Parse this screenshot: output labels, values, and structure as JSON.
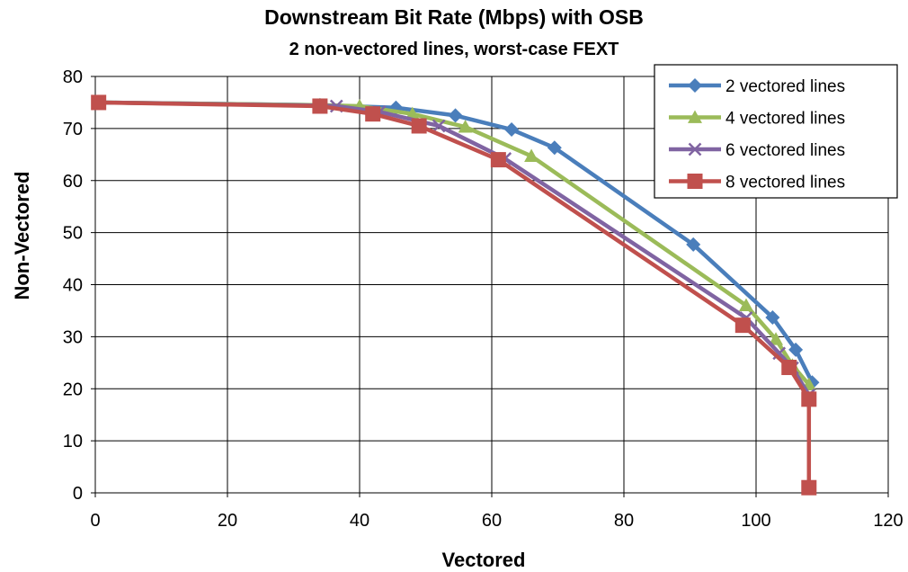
{
  "chart_data": {
    "type": "line",
    "title": "Downstream Bit Rate (Mbps) with OSB",
    "subtitle": "2 non-vectored lines, worst-case FEXT",
    "xlabel": "Vectored",
    "ylabel": "Non-Vectored",
    "xlim": [
      0,
      120
    ],
    "ylim": [
      0,
      80
    ],
    "xticks": [
      0,
      20,
      40,
      60,
      80,
      100,
      120
    ],
    "yticks": [
      0,
      10,
      20,
      30,
      40,
      50,
      60,
      70,
      80
    ],
    "grid": true,
    "legend_position": "top-right",
    "series": [
      {
        "name": "2 vectored lines",
        "color": "#4A7EBB",
        "marker": "diamond",
        "x": [
          0.5,
          34,
          45.5,
          54.5,
          63,
          69.5,
          90.5,
          102.5,
          106,
          108.5
        ],
        "y": [
          75,
          74.5,
          74,
          72.5,
          69.8,
          66.3,
          47.7,
          33.7,
          27.5,
          21.2
        ]
      },
      {
        "name": "4 vectored lines",
        "color": "#9BBB59",
        "marker": "triangle",
        "x": [
          0.5,
          34,
          40,
          48,
          56,
          66,
          98.5,
          103,
          105.5,
          108
        ],
        "y": [
          75,
          74.5,
          74.3,
          72.8,
          70.3,
          64.7,
          36,
          29.5,
          24.5,
          20.8
        ]
      },
      {
        "name": "6 vectored lines",
        "color": "#8064A2",
        "marker": "x",
        "x": [
          0.5,
          34,
          36.5,
          43,
          52,
          62,
          98.5,
          103.5,
          105.5,
          108
        ],
        "y": [
          75,
          74.4,
          74.3,
          73.2,
          70.5,
          64.2,
          33.6,
          26.8,
          24,
          18.8
        ]
      },
      {
        "name": "8 vectored lines",
        "color": "#C0504D",
        "marker": "square",
        "x": [
          0.5,
          34,
          42,
          49,
          61,
          98,
          105,
          108,
          108
        ],
        "y": [
          75,
          74.3,
          72.8,
          70.5,
          64,
          32.2,
          24.1,
          18,
          1
        ]
      }
    ]
  }
}
